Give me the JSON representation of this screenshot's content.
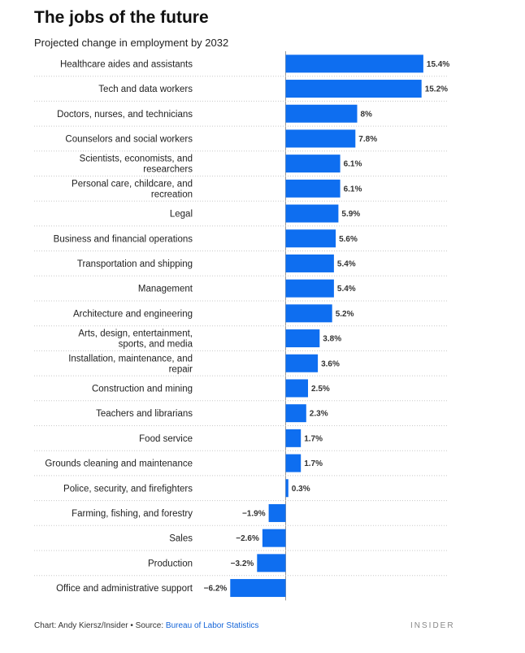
{
  "title": "The jobs of the future",
  "subtitle": "Projected change in employment by 2032",
  "footer": {
    "credit": "Chart: Andy Kiersz/Insider",
    "separator": " • ",
    "source_prefix": "Source: ",
    "source_name": "Bureau of Labor Statistics"
  },
  "brand": "INSIDER",
  "colors": {
    "bar": "#0e6ef0",
    "gridline": "#c8c8c8",
    "axis": "#9a9a9a"
  },
  "chart_data": {
    "type": "bar",
    "orientation": "horizontal",
    "unit": "%",
    "xlim": [
      -6.2,
      15.4
    ],
    "categories": [
      "Healthcare aides and assistants",
      "Tech and data workers",
      "Doctors, nurses, and technicians",
      "Counselors and social workers",
      "Scientists, economists, and researchers",
      "Personal care, childcare, and recreation",
      "Legal",
      "Business and financial operations",
      "Transportation and shipping",
      "Management",
      "Architecture and engineering",
      "Arts, design, entertainment, sports, and media",
      "Installation, maintenance, and repair",
      "Construction and mining",
      "Teachers and librarians",
      "Food service",
      "Grounds cleaning and maintenance",
      "Police, security, and firefighters",
      "Farming, fishing, and forestry",
      "Sales",
      "Production",
      "Office and administrative support"
    ],
    "values": [
      15.4,
      15.2,
      8,
      7.8,
      6.1,
      6.1,
      5.9,
      5.6,
      5.4,
      5.4,
      5.2,
      3.8,
      3.6,
      2.5,
      2.3,
      1.7,
      1.7,
      0.3,
      -1.9,
      -2.6,
      -3.2,
      -6.2
    ],
    "value_labels": [
      "15.4%",
      "15.2%",
      "8%",
      "7.8%",
      "6.1%",
      "6.1%",
      "5.9%",
      "5.6%",
      "5.4%",
      "5.4%",
      "5.2%",
      "3.8%",
      "3.6%",
      "2.5%",
      "2.3%",
      "1.7%",
      "1.7%",
      "0.3%",
      "−1.9%",
      "−2.6%",
      "−3.2%",
      "−6.2%"
    ]
  }
}
